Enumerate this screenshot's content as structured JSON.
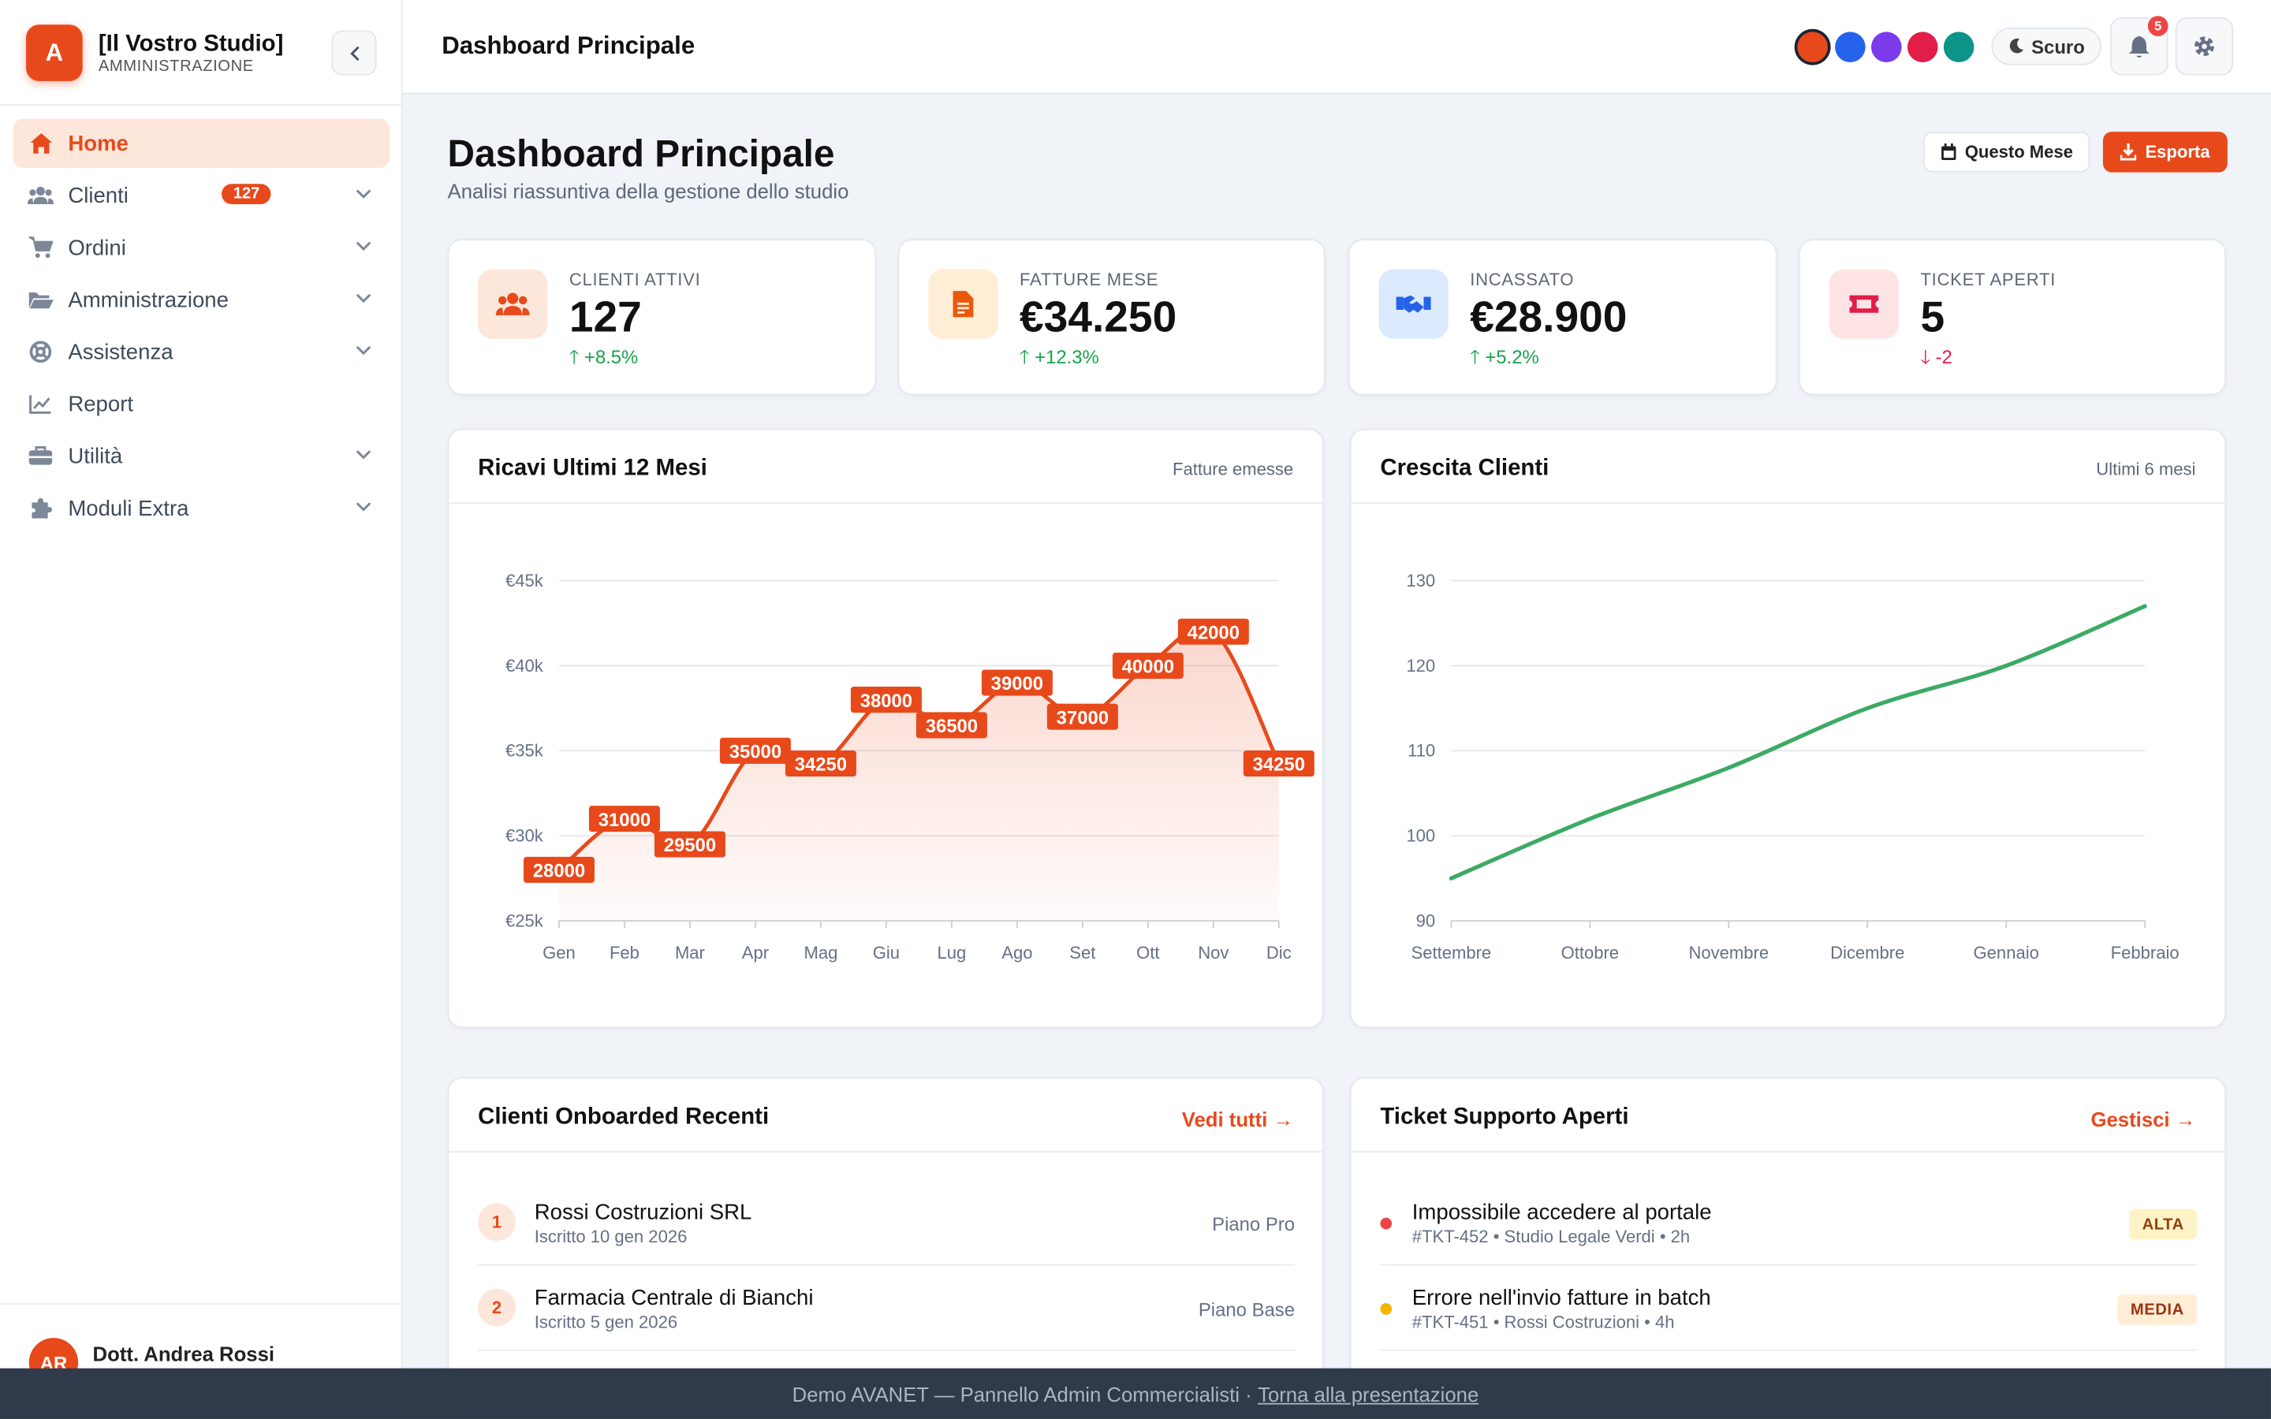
{
  "brand": {
    "logo_letter": "A",
    "name": "[Il Vostro Studio]",
    "subtitle": "AMMINISTRAZIONE"
  },
  "sidebar": {
    "items": [
      {
        "label": "Home",
        "icon": "home-icon",
        "active": true
      },
      {
        "label": "Clienti",
        "icon": "users-icon",
        "badge": "127"
      },
      {
        "label": "Ordini",
        "icon": "cart-icon"
      },
      {
        "label": "Amministrazione",
        "icon": "folder-icon"
      },
      {
        "label": "Assistenza",
        "icon": "lifebuoy-icon"
      },
      {
        "label": "Report",
        "icon": "chart-line-icon"
      },
      {
        "label": "Utilità",
        "icon": "toolbox-icon"
      },
      {
        "label": "Moduli Extra",
        "icon": "puzzle-icon"
      }
    ]
  },
  "user": {
    "initials": "AR",
    "name": "Dott. Andrea Rossi"
  },
  "topbar": {
    "title": "Dashboard Principale",
    "theme_colors": [
      "#e8491b",
      "#2563eb",
      "#7c3aed",
      "#e11d48",
      "#0d9488"
    ],
    "mode_label": "Scuro",
    "notifications": "5"
  },
  "header": {
    "title": "Dashboard Principale",
    "subtitle": "Analisi riassuntiva della gestione dello studio",
    "month_button": "Questo Mese",
    "export_button": "Esporta"
  },
  "stats": [
    {
      "label": "CLIENTI ATTIVI",
      "value": "127",
      "trend": "+8.5%",
      "dir": "up",
      "icon": "users-icon",
      "color": "#e8491b",
      "bg": "#fde6da"
    },
    {
      "label": "FATTURE MESE",
      "value": "€34.250",
      "trend": "+12.3%",
      "dir": "up",
      "icon": "invoice-icon",
      "color": "#ea580c",
      "bg": "#ffedd5"
    },
    {
      "label": "INCASSATO",
      "value": "€28.900",
      "trend": "+5.2%",
      "dir": "up",
      "icon": "handshake-icon",
      "color": "#2563eb",
      "bg": "#dbeafe"
    },
    {
      "label": "TICKET APERTI",
      "value": "5",
      "trend": "-2",
      "dir": "down",
      "icon": "ticket-icon",
      "color": "#e11d48",
      "bg": "#ffe4e6"
    }
  ],
  "charts": {
    "revenue": {
      "title": "Ricavi Ultimi 12 Mesi",
      "subtitle": "Fatture emesse"
    },
    "growth": {
      "title": "Crescita Clienti",
      "subtitle": "Ultimi 6 mesi"
    }
  },
  "chart_data": [
    {
      "type": "area",
      "categories": [
        "Gen",
        "Feb",
        "Mar",
        "Apr",
        "Mag",
        "Giu",
        "Lug",
        "Ago",
        "Set",
        "Ott",
        "Nov",
        "Dic"
      ],
      "values": [
        28000,
        31000,
        29500,
        35000,
        34250,
        38000,
        36500,
        39000,
        37000,
        40000,
        42000,
        34250
      ],
      "ylim": [
        25000,
        45000
      ],
      "yticks": [
        25000,
        30000,
        35000,
        40000,
        45000
      ],
      "ytick_labels": [
        "€25k",
        "€30k",
        "€35k",
        "€40k",
        "€45k"
      ],
      "color": "#e8491b",
      "grid": true
    },
    {
      "type": "line",
      "categories": [
        "Settembre",
        "Ottobre",
        "Novembre",
        "Dicembre",
        "Gennaio",
        "Febbraio"
      ],
      "values": [
        95,
        102,
        108,
        115,
        120,
        127
      ],
      "ylim": [
        90,
        130
      ],
      "yticks": [
        90,
        100,
        110,
        120,
        130
      ],
      "color": "#3daa64",
      "grid": true
    }
  ],
  "clients": {
    "title": "Clienti Onboarded Recenti",
    "link": "Vedi tutti →",
    "rows": [
      {
        "num": "1",
        "name": "Rossi Costruzioni SRL",
        "sub": "Iscritto 10 gen 2026",
        "plan": "Piano Pro"
      },
      {
        "num": "2",
        "name": "Farmacia Centrale di Bianchi",
        "sub": "Iscritto 5 gen 2026",
        "plan": "Piano Base"
      }
    ]
  },
  "tickets": {
    "title": "Ticket Supporto Aperti",
    "link": "Gestisci →",
    "rows": [
      {
        "name": "Impossibile accedere al portale",
        "sub": "#TKT-452 • Studio Legale Verdi • 2h",
        "badge": "ALTA",
        "dot": "#ef4444",
        "badge_bg": "#fef3c7",
        "badge_fg": "#92400e"
      },
      {
        "name": "Errore nell'invio fatture in batch",
        "sub": "#TKT-451 • Rossi Costruzioni • 4h",
        "badge": "MEDIA",
        "dot": "#f5b400",
        "badge_bg": "#ffedd5",
        "badge_fg": "#9a3412"
      }
    ]
  },
  "footer": {
    "text": "Demo AVANET — Pannello Admin Commercialisti ·",
    "link": "Torna alla presentazione"
  }
}
